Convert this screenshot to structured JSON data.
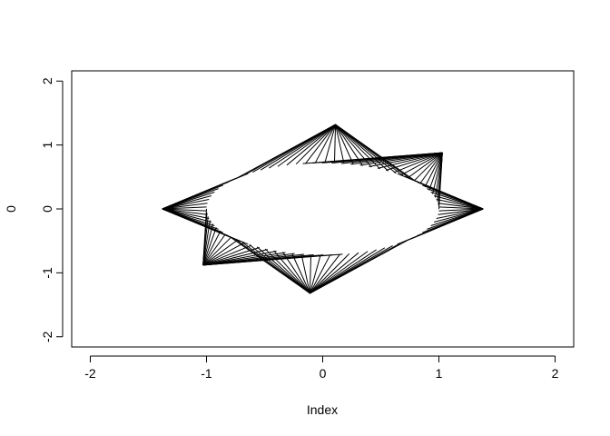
{
  "chart_data": {
    "type": "line",
    "title": "",
    "xlabel": "Index",
    "ylabel": "0",
    "xlim": [
      -2.16,
      2.16
    ],
    "ylim": [
      -2.16,
      2.16
    ],
    "xticks": [
      -2,
      -1,
      0,
      1,
      2
    ],
    "yticks": [
      -2,
      -1,
      0,
      1,
      2
    ],
    "xtick_labels": [
      "-2",
      "-1",
      "0",
      "1",
      "2"
    ],
    "ytick_labels": [
      "-2",
      "-1",
      "0",
      "1",
      "2"
    ],
    "grid": false,
    "legend": "none",
    "series": [
      {
        "style": "fan",
        "apexes": [
          {
            "x": 1.38,
            "y": 0.0
          },
          {
            "x": 1.03,
            "y": 0.88
          },
          {
            "x": 0.11,
            "y": 1.32
          },
          {
            "x": -1.38,
            "y": 0.0
          },
          {
            "x": -1.03,
            "y": -0.88
          },
          {
            "x": -0.11,
            "y": -1.32
          }
        ],
        "base_circle": {
          "center": [
            0,
            0
          ],
          "radius": 1.0,
          "aspect_y": 0.72
        }
      }
    ]
  }
}
